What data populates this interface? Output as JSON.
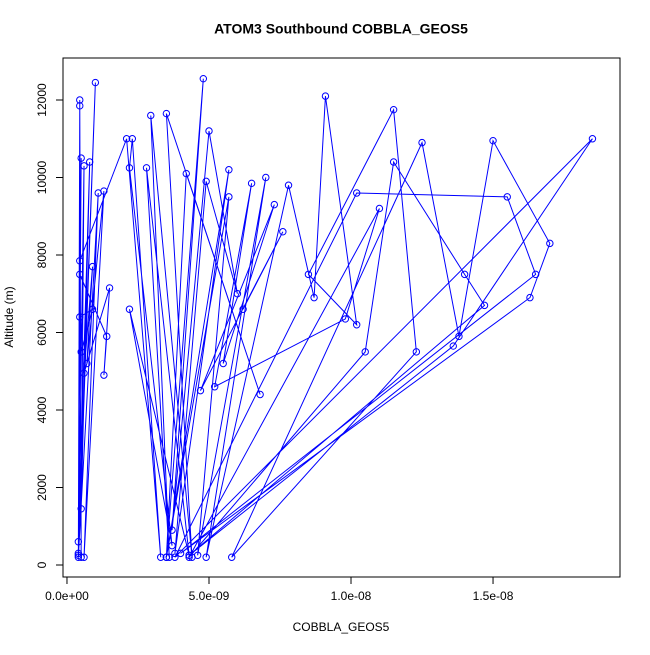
{
  "chart_data": {
    "type": "line",
    "marker": "circle",
    "title": "ATOM3 Southbound COBBLA_GEOS5",
    "xlabel": "COBBLA_GEOS5",
    "ylabel": "Altitude (m)",
    "color": "#0000ff",
    "grid": false,
    "xlim": [
      -1.4e-10,
      1.947e-08
    ],
    "ylim": [
      -310,
      13084
    ],
    "xticks": [
      {
        "value": 0,
        "label": "0.0e+00"
      },
      {
        "value": 5e-09,
        "label": "5.0e-09"
      },
      {
        "value": 1e-08,
        "label": "1.0e-08"
      },
      {
        "value": 1.5e-08,
        "label": "1.5e-08"
      }
    ],
    "yticks": [
      0,
      2000,
      4000,
      6000,
      8000,
      10000,
      12000
    ],
    "x": [
      5e-10,
      4.5e-10,
      4.5e-10,
      4e-10,
      5e-10,
      4e-10,
      6e-10,
      5e-10,
      8e-10,
      4e-10,
      1e-09,
      4e-10,
      1.1e-09,
      6e-10,
      1.3e-09,
      7e-10,
      9e-10,
      6e-10,
      1.5e-09,
      1.3e-09,
      1.4e-09,
      4.5e-10,
      5e-10,
      9e-10,
      4.5e-10,
      4.5e-10,
      2.1e-09,
      3.3e-09,
      2.3e-09,
      2.2e-09,
      3.7e-09,
      2.2e-09,
      4.3e-09,
      2.8e-09,
      3.6e-09,
      2.95e-09,
      4.4e-09,
      3.5e-09,
      6.8e-09,
      4.2e-09,
      3.5e-09,
      4.8e-09,
      3.7e-09,
      5e-09,
      6e-09,
      4.9e-09,
      3.8e-09,
      5.7e-09,
      3.5e-09,
      5.7e-09,
      4.6e-09,
      7e-09,
      4.9e-09,
      7.8e-09,
      8.7e-09,
      9.1e-09,
      1.02e-08,
      8.5e-09,
      1.15e-08,
      1.23e-08,
      5.8e-09,
      1.25e-08,
      1.38e-08,
      1.5e-08,
      1.7e-08,
      1.63e-08,
      4e-09,
      1.65e-08,
      1.55e-08,
      1.02e-08,
      3.8e-09,
      1.85e-08,
      1.36e-08,
      4.3e-09,
      1.47e-08,
      1.4e-08,
      1.15e-08,
      1.05e-08,
      4.3e-09,
      1.1e-08,
      9.8e-09,
      5.2e-09,
      6.5e-09,
      5.5e-09,
      7.3e-09,
      4.7e-09,
      7.6e-09,
      6.2e-09
    ],
    "values": [
      200,
      12000,
      11850,
      250,
      10500,
      300,
      10300,
      1450,
      10400,
      600,
      12450,
      200,
      9600,
      200,
      9650,
      5200,
      7700,
      4950,
      7150,
      4900,
      5900,
      7500,
      5500,
      6600,
      6400,
      7850,
      11000,
      200,
      11000,
      10250,
      500,
      6600,
      250,
      10250,
      200,
      11600,
      200,
      11650,
      4400,
      10100,
      200,
      12550,
      900,
      11200,
      7000,
      9900,
      300,
      10200,
      200,
      9500,
      250,
      10000,
      200,
      9800,
      6900,
      12100,
      6200,
      7500,
      11750,
      5500,
      200,
      10900,
      5900,
      10950,
      8300,
      6900,
      300,
      7500,
      9500,
      9600,
      200,
      11000,
      5650,
      250,
      6700,
      7500,
      10400,
      5500,
      200,
      9200,
      6350,
      4600,
      9850,
      5200,
      9300,
      4500,
      8600,
      6600
    ]
  }
}
